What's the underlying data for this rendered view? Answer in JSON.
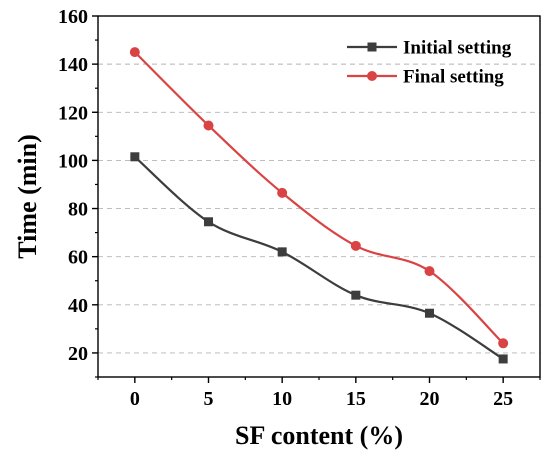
{
  "chart_data": {
    "type": "line",
    "title": "",
    "xlabel": "SF content (%)",
    "ylabel": "Time (min)",
    "x": [
      0,
      5,
      10,
      15,
      20,
      25
    ],
    "xlim": [
      -2.5,
      27.5
    ],
    "ylim": [
      10,
      160
    ],
    "xticks": [
      0,
      5,
      10,
      15,
      20,
      25
    ],
    "yticks": [
      20,
      40,
      60,
      80,
      100,
      120,
      140,
      160
    ],
    "grid": true,
    "legend_position": "top-right",
    "series": [
      {
        "name": "Initial setting",
        "values": [
          101.5,
          74.5,
          62,
          44,
          36.5,
          17.5
        ],
        "color": "#3d3d3d",
        "marker": "square"
      },
      {
        "name": "Final setting",
        "values": [
          145,
          114.5,
          86.5,
          64.5,
          54,
          24
        ],
        "color": "#d94343",
        "marker": "circle"
      }
    ]
  }
}
